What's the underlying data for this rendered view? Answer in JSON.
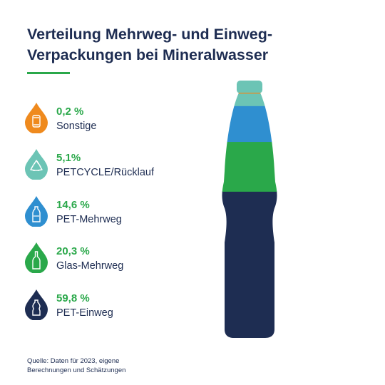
{
  "title_lines": [
    "Verteilung Mehrweg- und Einweg-",
    "Verpackungen bei Mineralwasser"
  ],
  "colors": {
    "accent": "#2aa84a",
    "navy": "#1e2d52"
  },
  "chart_data": {
    "type": "bar",
    "style": "stacked-bottle",
    "categories": [
      "Sonstige",
      "PETCYCLE/Rücklauf",
      "PET-Mehrweg",
      "Glas-Mehrweg",
      "PET-Einweg"
    ],
    "values": [
      0.2,
      5.1,
      14.6,
      20.3,
      59.8
    ],
    "value_labels": [
      "0,2 %",
      "5,1%",
      "14,6 %",
      "20,3 %",
      "59,8 %"
    ],
    "unit": "%",
    "colors": [
      "#ef8a1e",
      "#6cc4b5",
      "#2f8fd0",
      "#2aa84a",
      "#1e2d52"
    ],
    "icons": [
      "can-icon",
      "recycle-icon",
      "pet-bottle-icon",
      "glass-bottle-icon",
      "pet-oneway-bottle-icon"
    ],
    "legend_position": "left"
  },
  "source_lines": [
    "Quelle: Daten für 2023, eigene",
    "Berechnungen und Schätzungen"
  ]
}
